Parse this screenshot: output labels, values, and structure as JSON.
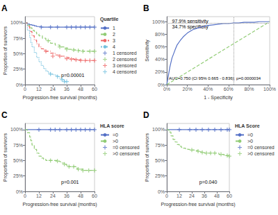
{
  "chart_data": [
    {
      "type": "step",
      "title": "A",
      "xlabel": "Progression-free survival (months)",
      "ylabel": "Proportion of survivors",
      "xlim": [
        0,
        60
      ],
      "ylim": [
        0,
        110
      ],
      "xticks": [
        0,
        12,
        24,
        36,
        48,
        60
      ],
      "yticks": [
        {
          "value": 0,
          "label": "0%"
        },
        {
          "value": 25,
          "label": "25%"
        },
        {
          "value": 50,
          "label": "50%"
        },
        {
          "value": 75,
          "label": "75%"
        },
        {
          "value": 100,
          "label": "100%"
        }
      ],
      "grid": false,
      "legend": "right",
      "legend_title": "Quartile",
      "annotations": [
        "p=0.00001"
      ],
      "series": [
        {
          "name": "1",
          "line_style": "solid",
          "x": [
            0,
            2,
            4,
            6,
            8,
            10,
            14,
            18,
            22,
            26,
            30,
            35,
            40,
            45,
            50,
            55,
            60
          ],
          "values": [
            100,
            98,
            97,
            96,
            95,
            94,
            93,
            93,
            93,
            93,
            93,
            93,
            93,
            93,
            93,
            93,
            93
          ]
        },
        {
          "name": "2",
          "line_style": "dashed",
          "x": [
            0,
            2,
            4,
            6,
            8,
            10,
            12,
            15,
            18,
            22,
            26,
            30,
            34,
            38,
            42,
            46,
            50,
            55,
            60
          ],
          "values": [
            100,
            96,
            92,
            88,
            85,
            82,
            79,
            75,
            71,
            67,
            64,
            61,
            59,
            57,
            56,
            55,
            54,
            54,
            54
          ]
        },
        {
          "name": "3",
          "line_style": "dashdot",
          "x": [
            0,
            2,
            4,
            6,
            8,
            10,
            12,
            14,
            16,
            18,
            22,
            26,
            30,
            34,
            38,
            42,
            46,
            50,
            55,
            60
          ],
          "values": [
            100,
            94,
            86,
            79,
            72,
            66,
            61,
            58,
            56,
            54,
            51,
            48,
            46,
            44,
            42,
            41,
            40,
            39,
            39,
            39
          ]
        },
        {
          "name": "4",
          "line_style": "dotted",
          "x": [
            0,
            2,
            4,
            5,
            6,
            8,
            10,
            12,
            14,
            16,
            18,
            20,
            22,
            24,
            26,
            28,
            30,
            32,
            34,
            36
          ],
          "values": [
            100,
            88,
            76,
            68,
            61,
            52,
            44,
            37,
            31,
            26,
            22,
            19,
            17,
            16,
            15,
            13,
            10,
            8,
            5,
            5
          ]
        },
        {
          "name": "1 censored",
          "type": "scatter",
          "marker": "+",
          "x": [
            14,
            22,
            28,
            36,
            40,
            44,
            48,
            52,
            56,
            60
          ],
          "values": [
            93,
            93,
            93,
            93,
            93,
            93,
            93,
            93,
            93,
            93
          ]
        },
        {
          "name": "2 censored",
          "type": "scatter",
          "marker": "+",
          "x": [
            20,
            30,
            36,
            42,
            46,
            50,
            56,
            60
          ],
          "values": [
            71,
            61,
            57,
            56,
            55,
            54,
            54,
            54
          ]
        },
        {
          "name": "3 censored",
          "type": "scatter",
          "marker": "+",
          "x": [
            18,
            24,
            30,
            36,
            40,
            44,
            48,
            52,
            56,
            60
          ],
          "values": [
            54,
            46,
            46,
            42,
            41,
            40,
            39,
            39,
            39,
            39
          ]
        },
        {
          "name": "4 censored",
          "type": "scatter",
          "marker": "+",
          "x": [
            22,
            28,
            32,
            34,
            36
          ],
          "values": [
            17,
            13,
            8,
            5,
            5
          ]
        }
      ]
    },
    {
      "type": "line",
      "title": "B",
      "xlabel": "1 - Specificity",
      "ylabel": "Sensitivity",
      "xlim": [
        0,
        1
      ],
      "ylim": [
        0,
        1.08
      ],
      "xticks": [
        {
          "value": 0,
          "label": "0%"
        },
        {
          "value": 0.2,
          "label": "20%"
        },
        {
          "value": 0.4,
          "label": "40%"
        },
        {
          "value": 0.6,
          "label": "60%"
        },
        {
          "value": 0.8,
          "label": "80%"
        },
        {
          "value": 1.0,
          "label": "100%"
        }
      ],
      "yticks": [
        {
          "value": 0,
          "label": "0%"
        },
        {
          "value": 0.2,
          "label": "20%"
        },
        {
          "value": 0.4,
          "label": "40%"
        },
        {
          "value": 0.6,
          "label": "60%"
        },
        {
          "value": 0.8,
          "label": "80%"
        },
        {
          "value": 1.0,
          "label": "100%"
        }
      ],
      "grid": false,
      "annotations": [
        "97.9% sensitivity",
        "34.7% specificity",
        "AUC=0.750 (CI 95% 0.665 - 0.836); p=0.0000034"
      ],
      "vlines": [
        0.653
      ],
      "hlines": [
        0.979
      ],
      "series": [
        {
          "line_style": "solid",
          "x": [
            0,
            0.03,
            0.05,
            0.08,
            0.1,
            0.13,
            0.16,
            0.2,
            0.25,
            0.3,
            0.35,
            0.4,
            0.45,
            0.5,
            0.55,
            0.6,
            0.65,
            0.7,
            0.75,
            0.8,
            0.85,
            0.9,
            0.95,
            1.0
          ],
          "values": [
            0,
            0.28,
            0.42,
            0.55,
            0.63,
            0.7,
            0.76,
            0.82,
            0.87,
            0.9,
            0.92,
            0.94,
            0.95,
            0.96,
            0.97,
            0.97,
            0.979,
            0.98,
            0.99,
            0.99,
            0.99,
            1.0,
            1.0,
            1.0
          ]
        },
        {
          "line_style": "dashed",
          "x": [
            0,
            1
          ],
          "values": [
            0,
            1
          ]
        }
      ]
    },
    {
      "type": "step",
      "title": "C",
      "xlabel": "Progression-free survival (months)",
      "ylabel": "Proportion of survivors",
      "xlim": [
        0,
        60
      ],
      "ylim": [
        0,
        110
      ],
      "xticks": [
        0,
        12,
        24,
        36,
        48,
        60
      ],
      "yticks": [
        {
          "value": 0,
          "label": "0%"
        },
        {
          "value": 25,
          "label": "25%"
        },
        {
          "value": 50,
          "label": "50%"
        },
        {
          "value": 75,
          "label": "75%"
        },
        {
          "value": 100,
          "label": "100%"
        }
      ],
      "grid": false,
      "legend": "right",
      "legend_title": "HLA score",
      "annotations": [
        "p=0.001"
      ],
      "series": [
        {
          "name": "=0",
          "line_style": "solid",
          "x": [
            0,
            60
          ],
          "values": [
            100,
            100
          ]
        },
        {
          "name": ">0",
          "line_style": "dashed",
          "x": [
            0,
            2,
            4,
            5,
            6,
            8,
            10,
            12,
            14,
            16,
            18,
            20,
            22,
            24,
            26,
            28,
            30,
            32,
            34,
            36,
            38,
            40,
            45,
            50,
            55,
            60
          ],
          "values": [
            100,
            95,
            88,
            82,
            75,
            68,
            62,
            57,
            54,
            52,
            50,
            50,
            50,
            50,
            50,
            49,
            48,
            46,
            44,
            42,
            40,
            40,
            36,
            34,
            34,
            34
          ]
        },
        {
          "name": "=0 censored",
          "type": "scatter",
          "marker": "+",
          "x": [
            12,
            22,
            26,
            30,
            36,
            40,
            44,
            48,
            52,
            56,
            60
          ],
          "values": [
            100,
            100,
            100,
            100,
            100,
            100,
            100,
            100,
            100,
            100,
            100
          ]
        },
        {
          "name": ">0 censored",
          "type": "scatter",
          "marker": "+",
          "x": [
            22,
            28,
            34,
            38,
            42,
            46,
            50,
            55,
            60
          ],
          "values": [
            50,
            49,
            44,
            40,
            40,
            36,
            34,
            34,
            34
          ]
        }
      ]
    },
    {
      "type": "step",
      "title": "D",
      "xlabel": "Progression-free survival (months)",
      "ylabel": "Proportion of survivors",
      "xlim": [
        0,
        60
      ],
      "ylim": [
        0,
        110
      ],
      "xticks": [
        0,
        12,
        24,
        36,
        48,
        60
      ],
      "yticks": [
        {
          "value": 0,
          "label": "0%"
        },
        {
          "value": 25,
          "label": "25%"
        },
        {
          "value": 50,
          "label": "50%"
        },
        {
          "value": 75,
          "label": "75%"
        },
        {
          "value": 100,
          "label": "100%"
        }
      ],
      "grid": false,
      "legend": "right",
      "legend_title": "HLA Score",
      "annotations": [
        "p=0.040"
      ],
      "series": [
        {
          "name": "=0",
          "line_style": "solid",
          "x": [
            0,
            60
          ],
          "values": [
            100,
            100
          ]
        },
        {
          "name": ">0",
          "line_style": "dashed",
          "x": [
            0,
            2,
            4,
            6,
            8,
            10,
            12,
            14,
            16,
            18,
            20,
            22,
            24,
            26,
            28,
            30,
            32,
            34,
            36,
            38,
            40,
            45,
            50,
            55,
            60
          ],
          "values": [
            100,
            96,
            90,
            84,
            80,
            76,
            73,
            71,
            70,
            69,
            68,
            67,
            67,
            67,
            66,
            65,
            64,
            63,
            62,
            62,
            62,
            62,
            60,
            58,
            57
          ]
        },
        {
          "name": "=0 censored",
          "type": "scatter",
          "marker": "+",
          "x": [
            12,
            22,
            28,
            34,
            40,
            46,
            52,
            58,
            60
          ],
          "values": [
            100,
            100,
            100,
            100,
            100,
            100,
            100,
            100,
            100
          ]
        },
        {
          "name": ">0 censored",
          "type": "scatter",
          "marker": "+",
          "x": [
            24,
            30,
            34,
            38,
            42,
            46,
            52,
            58,
            60
          ],
          "values": [
            67,
            65,
            63,
            62,
            62,
            62,
            60,
            58,
            57
          ]
        }
      ]
    }
  ]
}
